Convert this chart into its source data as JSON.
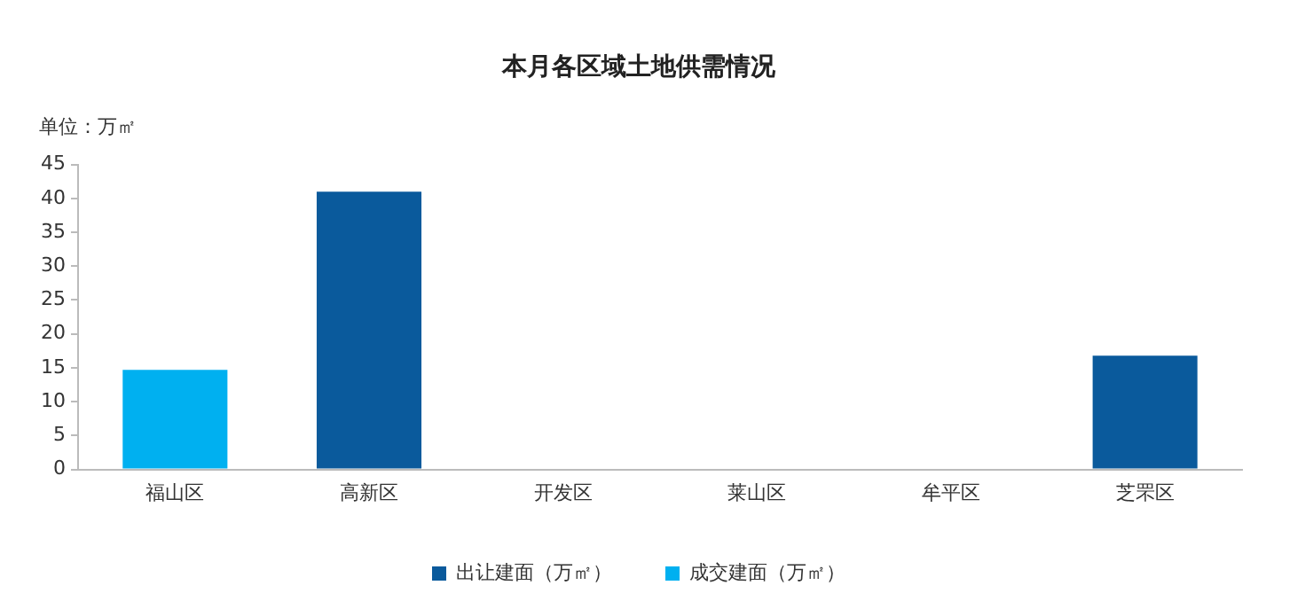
{
  "chart_data": {
    "type": "bar",
    "title": "本月各区域土地供需情况",
    "ylabel": "单位：万㎡",
    "categories": [
      "福山区",
      "高新区",
      "开发区",
      "莱山区",
      "牟平区",
      "芝罘区"
    ],
    "series": [
      {
        "name": "出让建面（万㎡）",
        "color": "#0a5a9c",
        "values": [
          null,
          41,
          null,
          null,
          null,
          16.8
        ]
      },
      {
        "name": "成交建面（万㎡）",
        "color": "#00b0f0",
        "values": [
          14.7,
          null,
          null,
          null,
          null,
          null
        ]
      }
    ],
    "ylim": [
      0,
      45
    ],
    "yticks": [
      0,
      5,
      10,
      15,
      20,
      25,
      30,
      35,
      40,
      45
    ],
    "grid": false,
    "legend": "bottom"
  }
}
